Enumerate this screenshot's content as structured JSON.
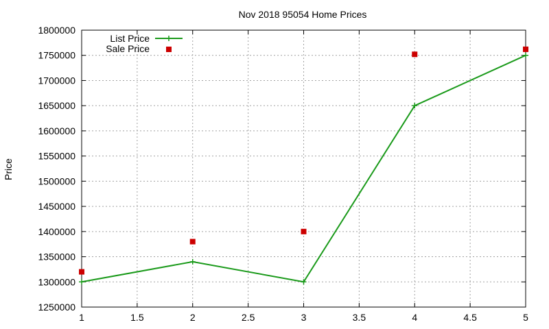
{
  "chart_data": {
    "type": "line",
    "title": "Nov 2018 95054 Home Prices",
    "xlabel": "",
    "ylabel": "Price",
    "xlim": [
      1,
      5
    ],
    "ylim": [
      1250000,
      1800000
    ],
    "x_ticks": [
      "1",
      "1.5",
      "2",
      "2.5",
      "3",
      "3.5",
      "4",
      "4.5",
      "5"
    ],
    "y_ticks": [
      "1250000",
      "1300000",
      "1350000",
      "1400000",
      "1450000",
      "1500000",
      "1550000",
      "1600000",
      "1650000",
      "1700000",
      "1750000",
      "1800000"
    ],
    "grid": true,
    "legend_position": "top-left",
    "x": [
      1,
      2,
      3,
      4,
      5
    ],
    "series": [
      {
        "name": "List Price",
        "style": "line-with-plus-markers",
        "color": "#1a9a1a",
        "values": [
          1300000,
          1340000,
          1300000,
          1650000,
          1750000
        ]
      },
      {
        "name": "Sale Price",
        "style": "square-markers",
        "color": "#cc0000",
        "values": [
          1320000,
          1380000,
          1400000,
          1752000,
          1762000
        ]
      }
    ]
  }
}
